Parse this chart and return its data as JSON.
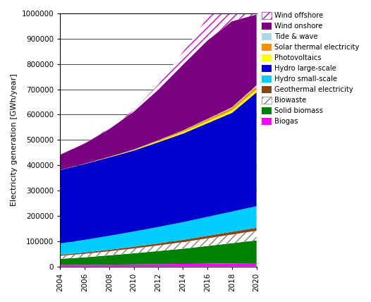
{
  "years": [
    2004,
    2006,
    2008,
    2010,
    2012,
    2014,
    2016,
    2018,
    2020
  ],
  "series": {
    "Biogas": [
      5000,
      6000,
      7000,
      8000,
      9000,
      10000,
      11000,
      12000,
      13000
    ],
    "Solid biomass": [
      25000,
      30000,
      37000,
      44000,
      52000,
      60000,
      70000,
      80000,
      90000
    ],
    "Biowaste": [
      12000,
      14000,
      16000,
      19000,
      22000,
      26000,
      30000,
      34000,
      38000
    ],
    "Geothermal electricity": [
      4000,
      5000,
      6000,
      7000,
      8000,
      9000,
      10000,
      11000,
      12000
    ],
    "Hydro small-scale": [
      45000,
      50000,
      55000,
      60000,
      65000,
      70000,
      75000,
      80000,
      85000
    ],
    "Hydro large-scale": [
      290000,
      300000,
      310000,
      320000,
      335000,
      350000,
      370000,
      390000,
      450000
    ],
    "Photovoltaics": [
      200,
      500,
      1000,
      2000,
      4000,
      6000,
      8000,
      10000,
      12000
    ],
    "Solar thermal electricity": [
      200,
      400,
      800,
      1500,
      3000,
      5000,
      7000,
      9000,
      11000
    ],
    "Tide & wave": [
      100,
      200,
      300,
      500,
      800,
      1200,
      2000,
      3000,
      5000
    ],
    "Wind onshore": [
      60000,
      80000,
      110000,
      150000,
      200000,
      260000,
      310000,
      340000,
      280000
    ],
    "Wind offshore": [
      0,
      1000,
      3000,
      6000,
      20000,
      50000,
      90000,
      120000,
      150000
    ]
  },
  "colors": {
    "Biogas": "#ff00ff",
    "Solid biomass": "#008000",
    "Biowaste": "#808080",
    "Geothermal electricity": "#8B4513",
    "Hydro small-scale": "#00ccff",
    "Hydro large-scale": "#0000cc",
    "Photovoltaics": "#ffff00",
    "Solar thermal electricity": "#ff8c00",
    "Tide & wave": "#add8e6",
    "Wind onshore": "#7B0080",
    "Wind offshore": "#cc00cc"
  },
  "hatches": {
    "Biowaste": "///",
    "Wind offshore": "///"
  },
  "ylabel": "Electricity generation [GWh/year]",
  "ylim": [
    0,
    1000000
  ],
  "yticks": [
    0,
    100000,
    200000,
    300000,
    400000,
    500000,
    600000,
    700000,
    800000,
    900000,
    1000000
  ],
  "xticks": [
    2004,
    2006,
    2008,
    2010,
    2012,
    2014,
    2016,
    2018,
    2020
  ],
  "stack_order": [
    "Biogas",
    "Solid biomass",
    "Biowaste",
    "Geothermal electricity",
    "Hydro small-scale",
    "Hydro large-scale",
    "Photovoltaics",
    "Solar thermal electricity",
    "Tide & wave",
    "Wind onshore",
    "Wind offshore"
  ],
  "legend_order": [
    "Wind offshore",
    "Wind onshore",
    "Tide & wave",
    "Solar thermal electricity",
    "Photovoltaics",
    "Hydro large-scale",
    "Hydro small-scale",
    "Geothermal electricity",
    "Biowaste",
    "Solid biomass",
    "Biogas"
  ]
}
